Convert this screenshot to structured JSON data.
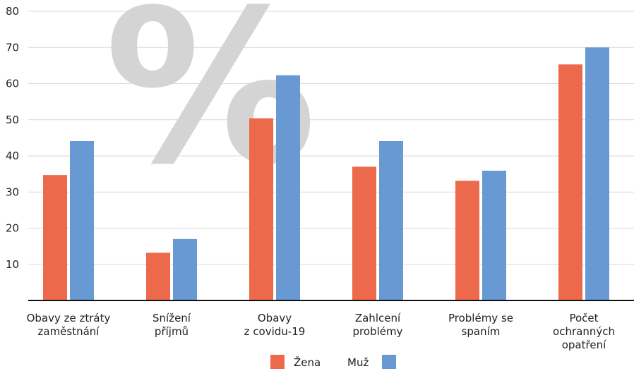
{
  "chart_data": {
    "type": "bar",
    "title": "",
    "xlabel": "",
    "ylabel": "",
    "watermark": "%",
    "ylim": [
      0,
      80
    ],
    "yticks": [
      10,
      20,
      30,
      40,
      50,
      60,
      70,
      80
    ],
    "categories": [
      [
        "Obavy ze ztráty",
        "zaměstnání"
      ],
      [
        "Snížení",
        "příjmů"
      ],
      [
        "Obavy",
        "z covidu-19"
      ],
      [
        "Zahlcení",
        "problémy"
      ],
      [
        "Problémy se",
        "spaním"
      ],
      [
        "Počet",
        "ochranných",
        "opatření"
      ]
    ],
    "series": [
      {
        "name": "Žena",
        "color": "#ec6a4b",
        "values": [
          34.7,
          13.2,
          50.4,
          37.0,
          33.1,
          65.3
        ]
      },
      {
        "name": "Muž",
        "color": "#6899d3",
        "values": [
          44.1,
          17.0,
          62.3,
          44.1,
          35.9,
          70.0
        ]
      }
    ],
    "grid": true,
    "legend_position": "bottom-center"
  }
}
